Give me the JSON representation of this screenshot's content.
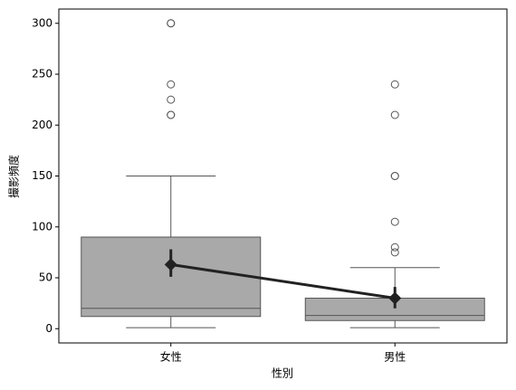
{
  "chart_data": {
    "type": "box",
    "x_label": "性別",
    "y_label": "撮影頻度",
    "categories": [
      "女性",
      "男性"
    ],
    "box_color": "#a9a9a9",
    "line_color": "#555555",
    "mean_color": "#222222",
    "boxes": [
      {
        "whisker_low": 1,
        "q1": 12,
        "median": 20,
        "q3": 90,
        "whisker_high": 150,
        "outliers": [
          210,
          210,
          225,
          240,
          300,
          300
        ]
      },
      {
        "whisker_low": 1,
        "q1": 8,
        "median": 13,
        "q3": 30,
        "whisker_high": 60,
        "outliers": [
          75,
          80,
          105,
          150,
          150,
          210,
          240
        ]
      }
    ],
    "means": [
      63,
      30
    ],
    "ci": [
      [
        51,
        78
      ],
      [
        20,
        41
      ]
    ],
    "ylim": [
      -14,
      314
    ],
    "yticks": [
      0,
      50,
      100,
      150,
      200,
      250,
      300
    ]
  }
}
